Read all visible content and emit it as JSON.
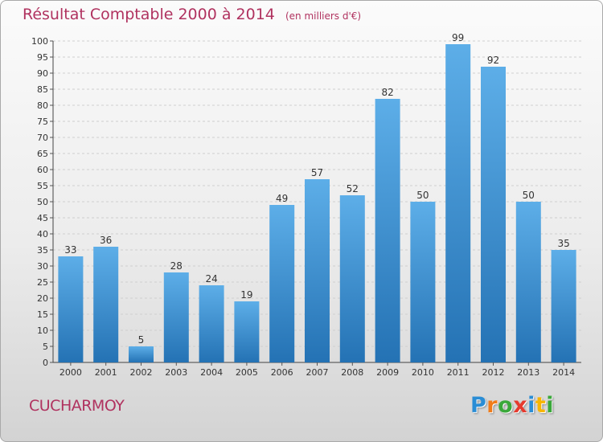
{
  "title": "Résultat Comptable 2000 à 2014",
  "unit": "(en milliers d'€)",
  "commune": "CUCHARMOY",
  "logo": {
    "letters": [
      "P",
      "r",
      "o",
      "x",
      "i",
      "t",
      "i"
    ],
    "colors": [
      "#2a8dd5",
      "#f07c1a",
      "#3aa83a",
      "#e63a2e",
      "#2a8dd5",
      "#f7b500",
      "#3aa83a"
    ]
  },
  "colors": {
    "bar_light": "#5daee8",
    "bar_dark": "#2472b4",
    "title": "#b0325f",
    "axis_text": "#333333",
    "grid": "#cfcfcf"
  },
  "chart_data": {
    "type": "bar",
    "categories": [
      "2000",
      "2001",
      "2002",
      "2003",
      "2004",
      "2005",
      "2006",
      "2007",
      "2008",
      "2009",
      "2010",
      "2011",
      "2012",
      "2013",
      "2014"
    ],
    "values": [
      33,
      36,
      5,
      28,
      24,
      19,
      49,
      57,
      52,
      82,
      50,
      99,
      92,
      50,
      35
    ],
    "ylim": [
      0,
      100
    ],
    "yticks": [
      0,
      5,
      10,
      15,
      20,
      25,
      30,
      35,
      40,
      45,
      50,
      55,
      60,
      65,
      70,
      75,
      80,
      85,
      90,
      95,
      100
    ],
    "grid": "horizontal dashed",
    "data_labels": true
  }
}
